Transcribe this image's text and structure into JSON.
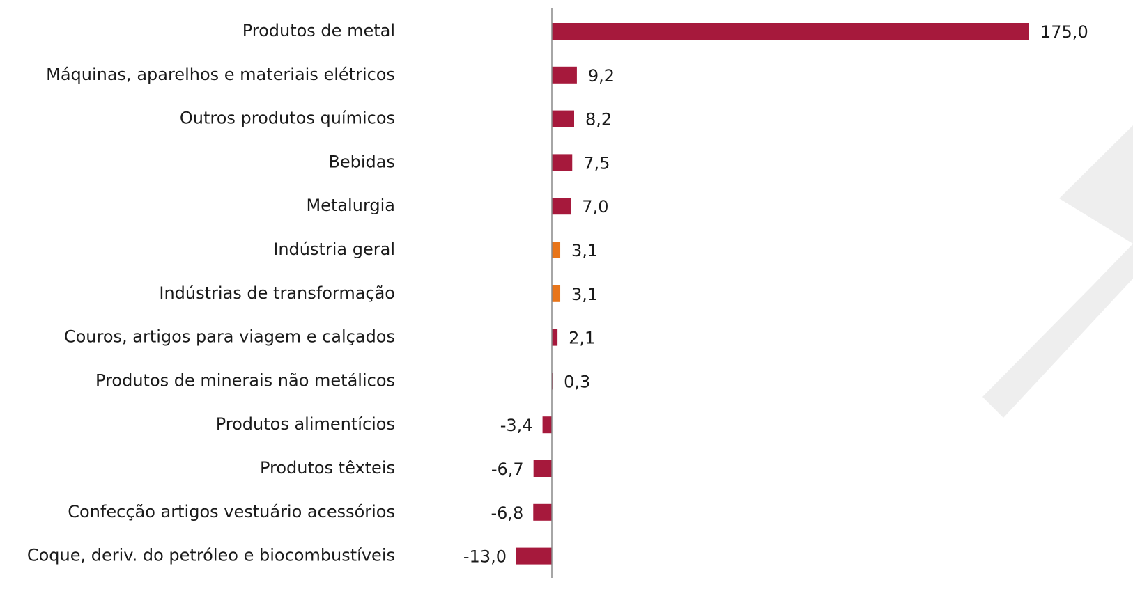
{
  "chart_data": {
    "type": "hbar",
    "categories": [
      "Produtos de metal",
      "Máquinas, aparelhos e materiais elétricos",
      "Outros produtos químicos",
      "Bebidas",
      "Metalurgia",
      "Indústria geral",
      "Indústrias de transformação",
      "Couros, artigos para viagem e calçados",
      "Produtos de minerais não metálicos",
      "Produtos alimentícios",
      "Produtos têxteis",
      "Confecção artigos vestuário acessórios",
      "Coque, deriv. do petróleo e biocombustíveis"
    ],
    "values": [
      175.0,
      9.2,
      8.2,
      7.5,
      7.0,
      3.1,
      3.1,
      2.1,
      0.3,
      -3.4,
      -6.7,
      -6.8,
      -13.0
    ],
    "value_labels": [
      "175,0",
      "9,2",
      "8,2",
      "7,5",
      "7,0",
      "3,1",
      "3,1",
      "2,1",
      "0,3",
      "-3,4",
      "-6,7",
      "-6,8",
      "-13,0"
    ],
    "colors": [
      "#a6193c",
      "#a6193c",
      "#a6193c",
      "#a6193c",
      "#a6193c",
      "#e8751a",
      "#e8751a",
      "#a6193c",
      "#a6193c",
      "#a6193c",
      "#a6193c",
      "#a6193c",
      "#a6193c"
    ],
    "xlim": [
      -13,
      175
    ]
  }
}
